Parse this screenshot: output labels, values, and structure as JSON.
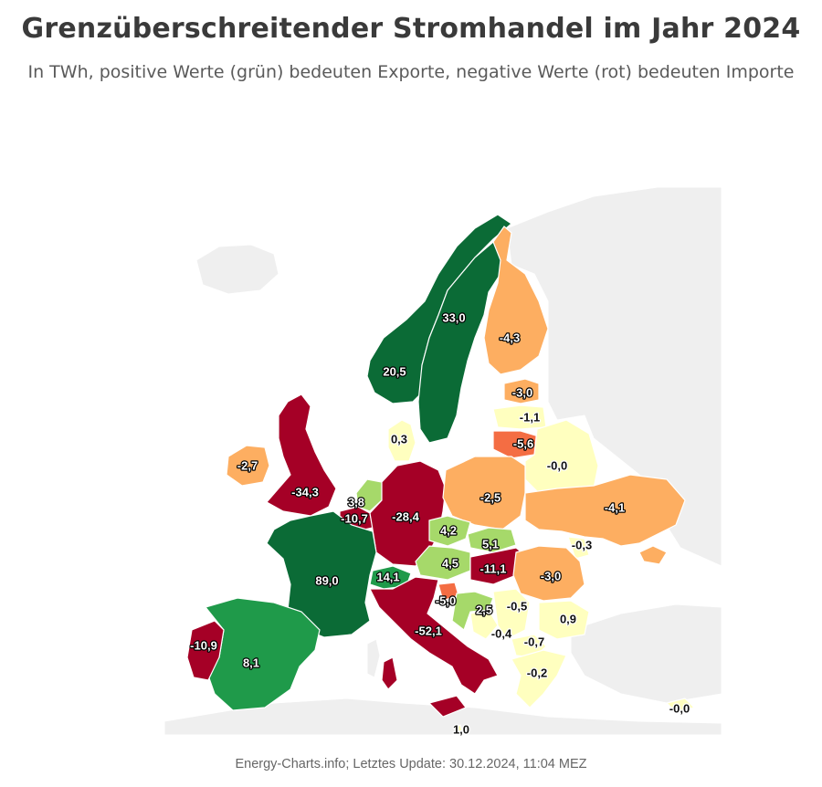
{
  "title": "Grenzüberschreitender Stromhandel im Jahr 2024",
  "subtitle": "In TWh, positive Werte (grün) bedeuten Exporte, negative Werte (rot) bedeuten Importe",
  "credit": "Energy-Charts.info; Letztes Update: 30.12.2024, 11:04 MEZ",
  "colors": {
    "strong_export": "#0b6b36",
    "export": "#1f9a4a",
    "light_export": "#a6d96a",
    "neutral": "#ffffbf",
    "light_import": "#fee08b",
    "import": "#fdae61",
    "strong_import": "#f46d43",
    "heavy_import": "#a50026",
    "background_land": "#efefef"
  },
  "countries": {
    "norway": {
      "label": "20,5",
      "value": 20.5
    },
    "sweden": {
      "label": "33,0",
      "value": 33.0
    },
    "finland": {
      "label": "-4,3",
      "value": -4.3
    },
    "estonia": {
      "label": "-3,0",
      "value": -3.0
    },
    "latvia": {
      "label": "-1,1",
      "value": -1.1
    },
    "lithuania": {
      "label": "-5,6",
      "value": -5.6
    },
    "denmark": {
      "label": "0,3",
      "value": 0.3
    },
    "ireland": {
      "label": "-2,7",
      "value": -2.7
    },
    "uk": {
      "label": "-34,3",
      "value": -34.3
    },
    "netherlands": {
      "label": "3,8",
      "value": 3.8
    },
    "belgium": {
      "label": "-10,7",
      "value": -10.7
    },
    "germany": {
      "label": "-28,4",
      "value": -28.4
    },
    "poland": {
      "label": "-2,5",
      "value": -2.5
    },
    "belarus": {
      "label": "-0,0",
      "value": 0.0
    },
    "ukraine": {
      "label": "-4,1",
      "value": -4.1
    },
    "czechia": {
      "label": "4,2",
      "value": 4.2
    },
    "slovakia": {
      "label": "5,1",
      "value": 5.1
    },
    "austria": {
      "label": "4,5",
      "value": 4.5
    },
    "hungary": {
      "label": "-11,1",
      "value": -11.1
    },
    "moldova": {
      "label": "-0,3",
      "value": -0.3
    },
    "romania": {
      "label": "-3,0",
      "value": -3.0
    },
    "france": {
      "label": "89,0",
      "value": 89.0
    },
    "switzerland": {
      "label": "14,1",
      "value": 14.1
    },
    "italy": {
      "label": "-52,1",
      "value": -52.1
    },
    "slovenia": {
      "label": "-5,0",
      "value": -5.0
    },
    "croatia": {
      "label": "2,5",
      "value": 2.5
    },
    "serbia": {
      "label": "-0,5",
      "value": -0.5
    },
    "bosnia": {
      "label": "-0,4",
      "value": -0.4
    },
    "bulgaria": {
      "label": "0,9",
      "value": 0.9
    },
    "north_macedonia": {
      "label": "-0,7",
      "value": -0.7
    },
    "greece": {
      "label": "-0,2",
      "value": -0.2
    },
    "cyprus": {
      "label": "-0,0",
      "value": 0.0
    },
    "spain": {
      "label": "8,1",
      "value": 8.1
    },
    "portugal": {
      "label": "-10,9",
      "value": -10.9
    },
    "malta": {
      "label": "1,0",
      "value": 1.0
    }
  }
}
